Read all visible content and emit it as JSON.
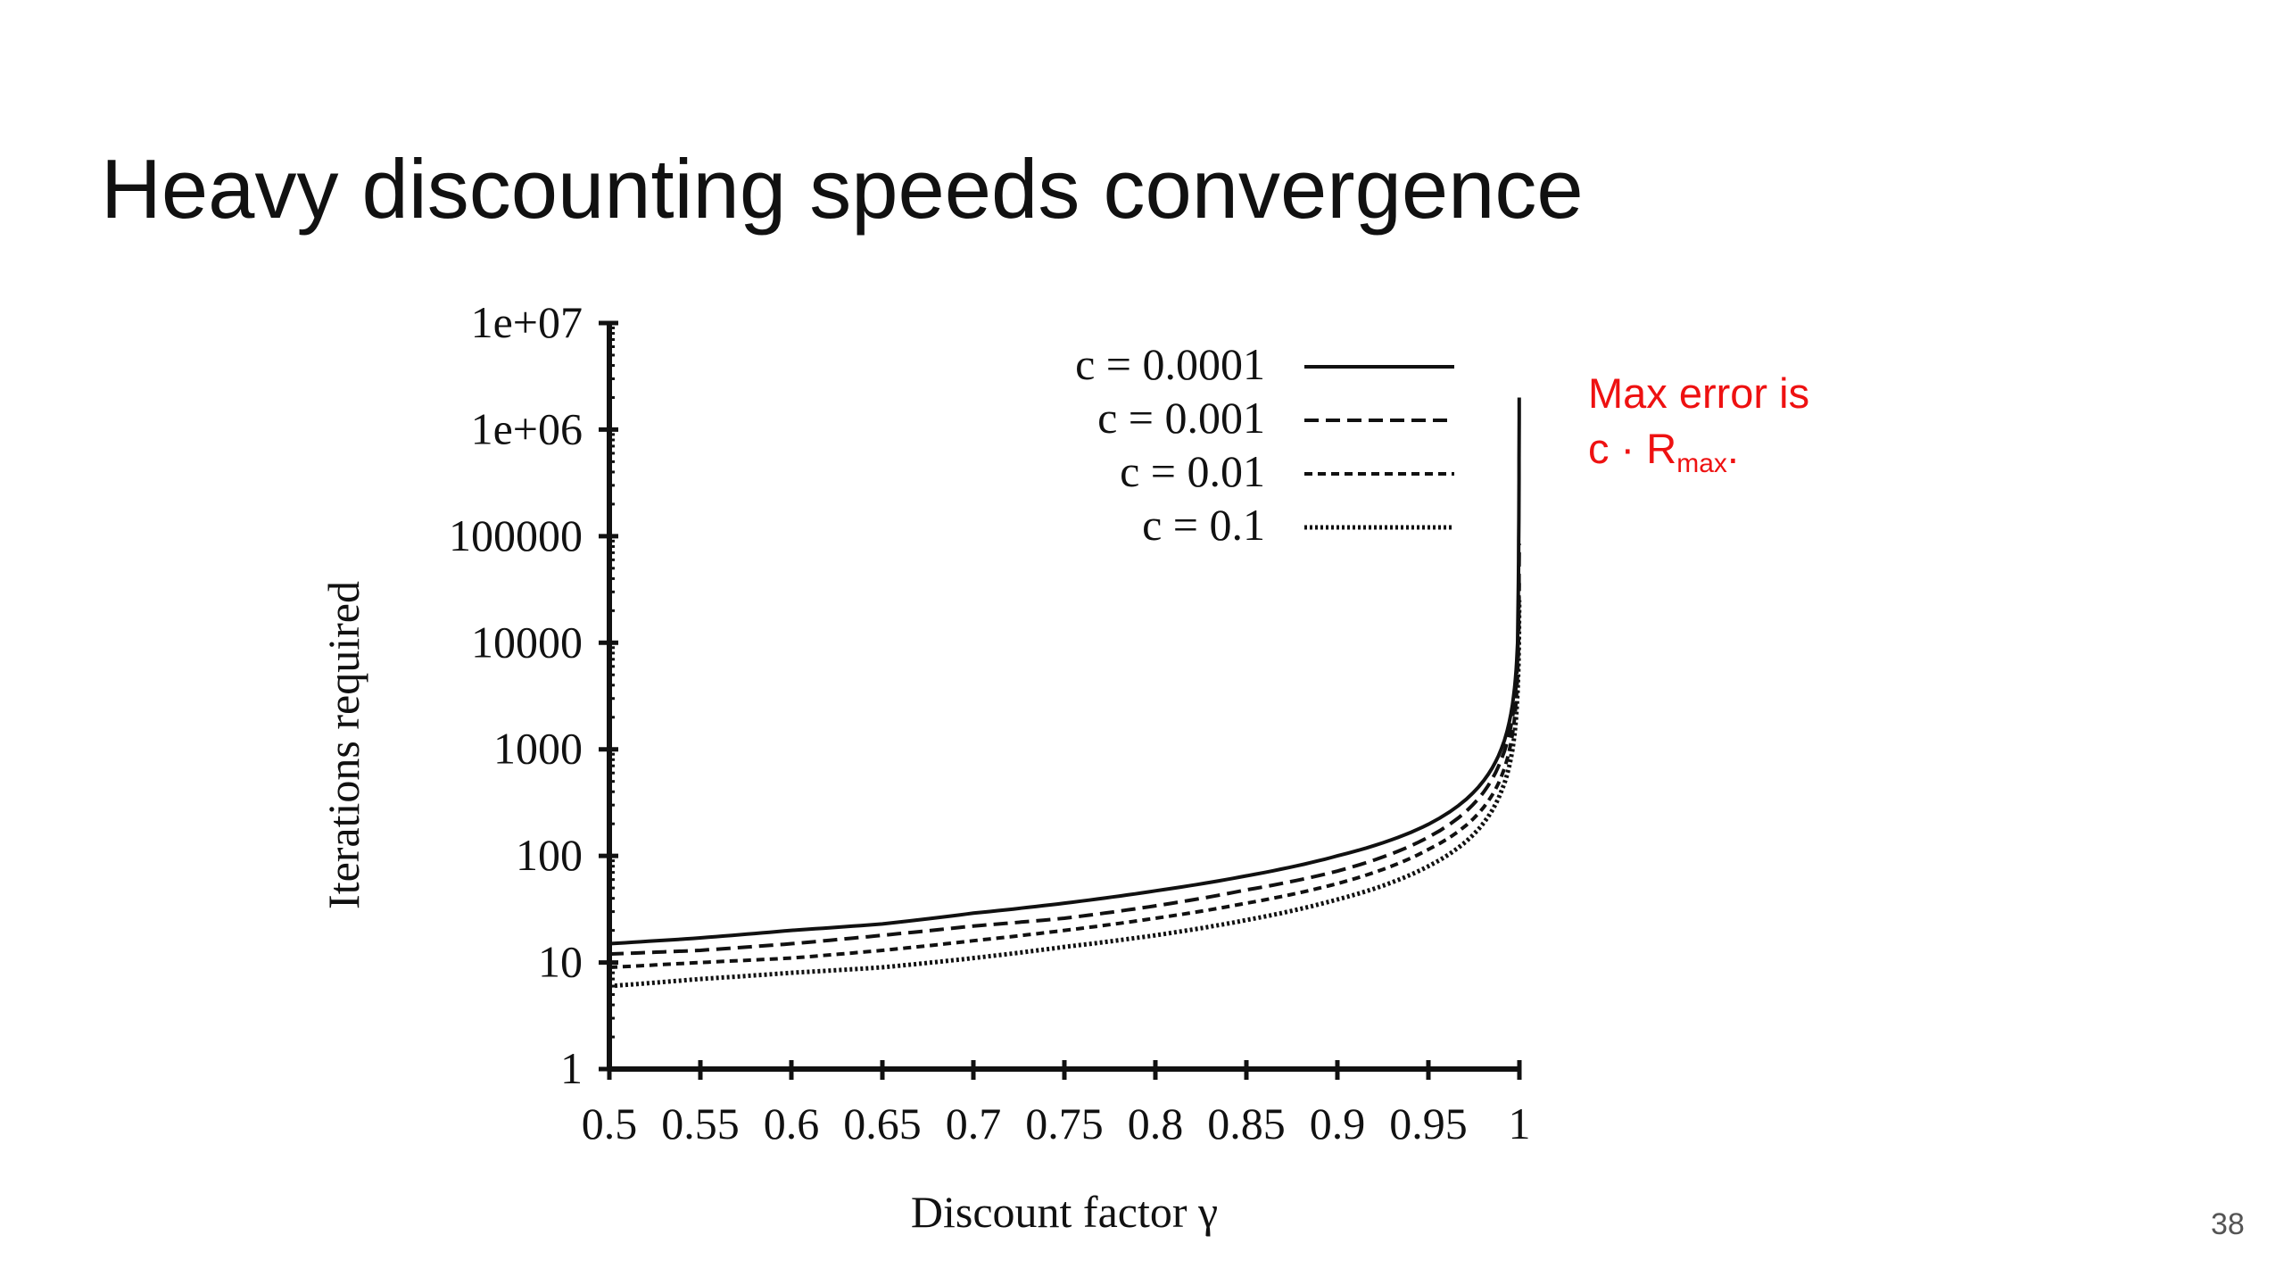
{
  "slide": {
    "title": "Heavy discounting speeds convergence",
    "page_number": "38"
  },
  "callout": {
    "line1": "Max error is",
    "line2_prefix": "c · R",
    "line2_sub": "max",
    "line2_suffix": ".",
    "color": "#ee1111"
  },
  "chart_data": {
    "type": "line",
    "xlabel": "Discount factor γ",
    "ylabel": "Iterations required",
    "xlim": [
      0.5,
      1
    ],
    "ylim": [
      1,
      10000000
    ],
    "yscale": "log",
    "x_ticks": [
      "0.5",
      "0.55",
      "0.6",
      "0.65",
      "0.7",
      "0.75",
      "0.8",
      "0.85",
      "0.9",
      "0.95",
      "1"
    ],
    "y_ticks": [
      "1",
      "10",
      "100",
      "1000",
      "10000",
      "100000",
      "1e+06",
      "1e+07"
    ],
    "legend_position": "top-right",
    "grid": false,
    "series": [
      {
        "name": "c = 0.0001",
        "style": "solid",
        "x": [
          0.5,
          0.55,
          0.6,
          0.65,
          0.7,
          0.75,
          0.8,
          0.85,
          0.9,
          0.95,
          0.99,
          0.999,
          0.9999
        ],
        "values": [
          15,
          17,
          20,
          23,
          29,
          36,
          47,
          65,
          100,
          198,
          1000,
          10000,
          2000000
        ]
      },
      {
        "name": "c = 0.001",
        "style": "dashed",
        "x": [
          0.5,
          0.55,
          0.6,
          0.65,
          0.7,
          0.75,
          0.8,
          0.85,
          0.9,
          0.95,
          0.99,
          0.999,
          0.9999
        ],
        "values": [
          12,
          13,
          15,
          18,
          22,
          26,
          34,
          48,
          72,
          150,
          800,
          7000,
          85000
        ]
      },
      {
        "name": "c = 0.01",
        "style": "dotted",
        "x": [
          0.5,
          0.55,
          0.6,
          0.65,
          0.7,
          0.75,
          0.8,
          0.85,
          0.9,
          0.95,
          0.99,
          0.999,
          0.9999
        ],
        "values": [
          9,
          10,
          11,
          13,
          16,
          20,
          26,
          36,
          55,
          115,
          550,
          5000,
          40000
        ]
      },
      {
        "name": "c = 0.1",
        "style": "fine-dotted",
        "x": [
          0.5,
          0.55,
          0.6,
          0.65,
          0.7,
          0.75,
          0.8,
          0.85,
          0.9,
          0.95,
          0.99,
          0.999,
          0.9999
        ],
        "values": [
          6,
          7,
          8,
          9,
          11,
          14,
          18,
          25,
          39,
          80,
          400,
          3500,
          25000
        ]
      }
    ]
  }
}
